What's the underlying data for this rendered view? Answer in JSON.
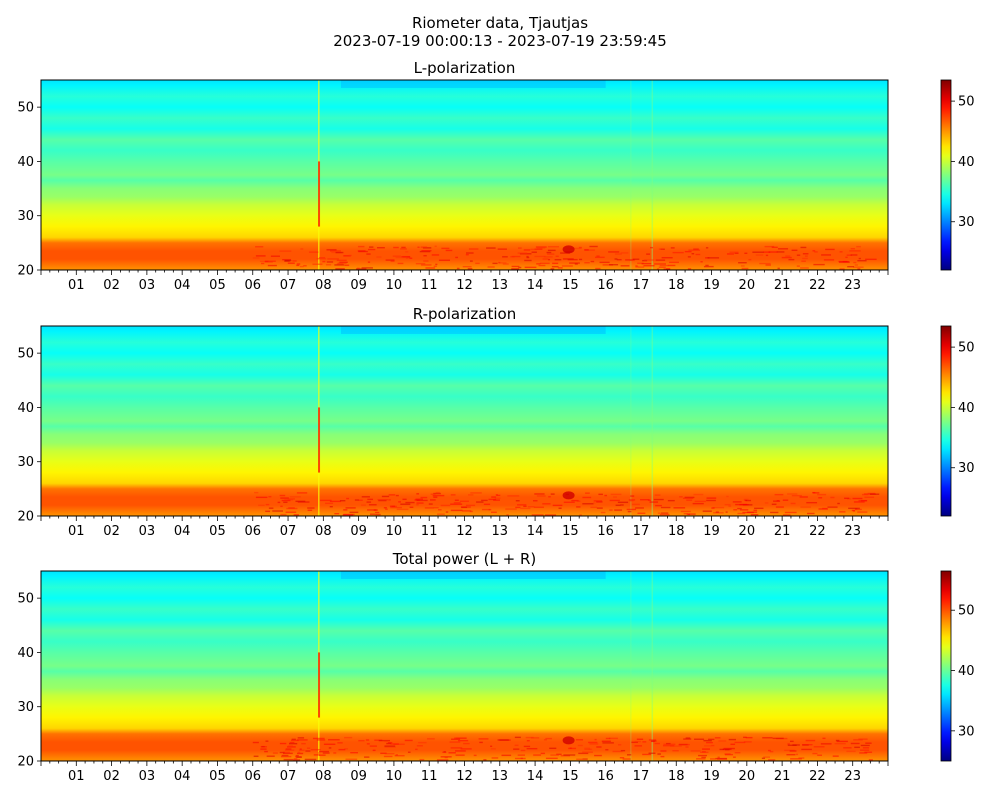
{
  "figure": {
    "title_line1": "Riometer data, Tjautjas",
    "title_line2": "2023-07-19 00:00:13 - 2023-07-19 23:59:45"
  },
  "chart_data": [
    {
      "type": "heatmap",
      "title": "L-polarization",
      "xlabel": "",
      "ylabel": "",
      "x_tick_labels": [
        "01",
        "02",
        "03",
        "04",
        "05",
        "06",
        "07",
        "08",
        "09",
        "10",
        "11",
        "12",
        "13",
        "14",
        "15",
        "16",
        "17",
        "18",
        "19",
        "20",
        "21",
        "22",
        "23"
      ],
      "x_tick_values": [
        1,
        2,
        3,
        4,
        5,
        6,
        7,
        8,
        9,
        10,
        11,
        12,
        13,
        14,
        15,
        16,
        17,
        18,
        19,
        20,
        21,
        22,
        23
      ],
      "xlim": [
        0,
        24
      ],
      "y_tick_labels": [
        "20",
        "30",
        "40",
        "50"
      ],
      "y_tick_values": [
        20,
        30,
        40,
        50
      ],
      "ylim": [
        20,
        55
      ],
      "colormap": "jet",
      "colorbar_ticks": [
        30,
        40,
        50
      ],
      "colorbar_range": [
        22,
        53.5
      ],
      "value_profile": [
        {
          "y": 20,
          "v": 45
        },
        {
          "y": 21,
          "v": 46
        },
        {
          "y": 22,
          "v": 47
        },
        {
          "y": 23.5,
          "v": 47
        },
        {
          "y": 25,
          "v": 46
        },
        {
          "y": 26,
          "v": 43
        },
        {
          "y": 28,
          "v": 42
        },
        {
          "y": 30,
          "v": 41
        },
        {
          "y": 32,
          "v": 40
        },
        {
          "y": 33.5,
          "v": 38.5
        },
        {
          "y": 35,
          "v": 38
        },
        {
          "y": 36.5,
          "v": 36.5
        },
        {
          "y": 37.5,
          "v": 37.5
        },
        {
          "y": 40,
          "v": 36.5
        },
        {
          "y": 42,
          "v": 35.5
        },
        {
          "y": 44,
          "v": 36.5
        },
        {
          "y": 46,
          "v": 34.5
        },
        {
          "y": 48,
          "v": 35.5
        },
        {
          "y": 50,
          "v": 34
        },
        {
          "y": 52,
          "v": 35
        },
        {
          "y": 54,
          "v": 33.5
        },
        {
          "y": 55,
          "v": 33
        }
      ]
    },
    {
      "type": "heatmap",
      "title": "R-polarization",
      "xlabel": "",
      "ylabel": "",
      "x_tick_labels": [
        "01",
        "02",
        "03",
        "04",
        "05",
        "06",
        "07",
        "08",
        "09",
        "10",
        "11",
        "12",
        "13",
        "14",
        "15",
        "16",
        "17",
        "18",
        "19",
        "20",
        "21",
        "22",
        "23"
      ],
      "x_tick_values": [
        1,
        2,
        3,
        4,
        5,
        6,
        7,
        8,
        9,
        10,
        11,
        12,
        13,
        14,
        15,
        16,
        17,
        18,
        19,
        20,
        21,
        22,
        23
      ],
      "xlim": [
        0,
        24
      ],
      "y_tick_labels": [
        "20",
        "30",
        "40",
        "50"
      ],
      "y_tick_values": [
        20,
        30,
        40,
        50
      ],
      "ylim": [
        20,
        55
      ],
      "colormap": "jet",
      "colorbar_ticks": [
        30,
        40,
        50
      ],
      "colorbar_range": [
        22,
        53.5
      ],
      "value_profile": [
        {
          "y": 20,
          "v": 45
        },
        {
          "y": 21,
          "v": 46
        },
        {
          "y": 22,
          "v": 47
        },
        {
          "y": 23.5,
          "v": 47
        },
        {
          "y": 25,
          "v": 46
        },
        {
          "y": 26,
          "v": 43
        },
        {
          "y": 28,
          "v": 42
        },
        {
          "y": 30,
          "v": 41
        },
        {
          "y": 32,
          "v": 40
        },
        {
          "y": 33.5,
          "v": 38.5
        },
        {
          "y": 35,
          "v": 38
        },
        {
          "y": 36.5,
          "v": 36.5
        },
        {
          "y": 37.5,
          "v": 37.5
        },
        {
          "y": 40,
          "v": 36.5
        },
        {
          "y": 42,
          "v": 35.5
        },
        {
          "y": 44,
          "v": 36.5
        },
        {
          "y": 46,
          "v": 34.5
        },
        {
          "y": 48,
          "v": 35.5
        },
        {
          "y": 50,
          "v": 34
        },
        {
          "y": 52,
          "v": 35
        },
        {
          "y": 54,
          "v": 33.5
        },
        {
          "y": 55,
          "v": 33
        }
      ]
    },
    {
      "type": "heatmap",
      "title": "Total power (L + R)",
      "xlabel": "",
      "ylabel": "",
      "x_tick_labels": [
        "01",
        "02",
        "03",
        "04",
        "05",
        "06",
        "07",
        "08",
        "09",
        "10",
        "11",
        "12",
        "13",
        "14",
        "15",
        "16",
        "17",
        "18",
        "19",
        "20",
        "21",
        "22",
        "23"
      ],
      "x_tick_values": [
        1,
        2,
        3,
        4,
        5,
        6,
        7,
        8,
        9,
        10,
        11,
        12,
        13,
        14,
        15,
        16,
        17,
        18,
        19,
        20,
        21,
        22,
        23
      ],
      "xlim": [
        0,
        24
      ],
      "y_tick_labels": [
        "20",
        "30",
        "40",
        "50"
      ],
      "y_tick_values": [
        20,
        30,
        40,
        50
      ],
      "ylim": [
        20,
        55
      ],
      "colormap": "jet",
      "colorbar_ticks": [
        30,
        40,
        50
      ],
      "colorbar_range": [
        25,
        56.5
      ],
      "value_profile": [
        {
          "y": 20,
          "v": 48
        },
        {
          "y": 21,
          "v": 49
        },
        {
          "y": 22,
          "v": 50
        },
        {
          "y": 23.5,
          "v": 50
        },
        {
          "y": 25,
          "v": 49
        },
        {
          "y": 26,
          "v": 46
        },
        {
          "y": 28,
          "v": 45
        },
        {
          "y": 30,
          "v": 44
        },
        {
          "y": 32,
          "v": 43
        },
        {
          "y": 33.5,
          "v": 41.5
        },
        {
          "y": 35,
          "v": 41
        },
        {
          "y": 36.5,
          "v": 39.5
        },
        {
          "y": 37.5,
          "v": 40.5
        },
        {
          "y": 40,
          "v": 39.5
        },
        {
          "y": 42,
          "v": 38.5
        },
        {
          "y": 44,
          "v": 39.5
        },
        {
          "y": 46,
          "v": 37.5
        },
        {
          "y": 48,
          "v": 38.5
        },
        {
          "y": 50,
          "v": 37
        },
        {
          "y": 52,
          "v": 38
        },
        {
          "y": 54,
          "v": 36.5
        },
        {
          "y": 55,
          "v": 36
        }
      ]
    }
  ]
}
